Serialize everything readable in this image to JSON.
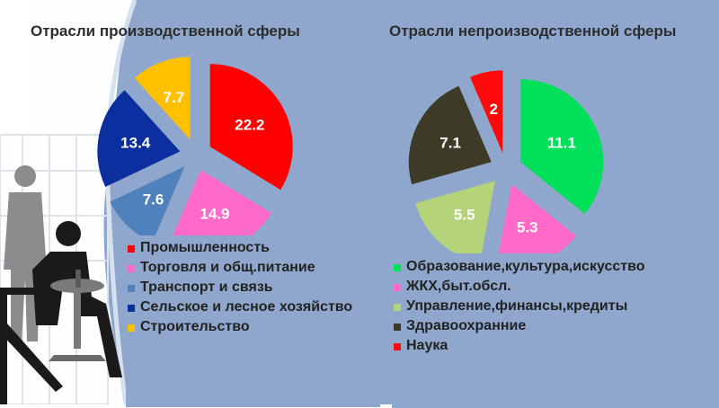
{
  "chart_data": [
    {
      "type": "pie",
      "title": "Отрасли производственной сферы",
      "categories": [
        "Промышленность",
        "Торговля и общ.питание",
        "Транспорт и связь",
        "Сельское и лесное хозяйство",
        "Строительство"
      ],
      "values": [
        22.2,
        14.9,
        7.6,
        13.4,
        7.7
      ],
      "value_labels": [
        "22.2",
        "14.9",
        "7.6",
        "13.4",
        "7.7"
      ],
      "colors": [
        "#ff0000",
        "#ff69c8",
        "#4f81bd",
        "#0b2f9e",
        "#ffc000"
      ],
      "legend_labels": [
        "Промышленность",
        "Торговля и общ.питание",
        " Транспорт и связь",
        "Сельское и лесное хозяйство",
        "Строительство"
      ],
      "legend": "bottom",
      "exploded": true
    },
    {
      "type": "pie",
      "title": "Отрасли непроизводственной сферы",
      "categories": [
        "Образование,культура,искусство",
        "ЖКХ,быт.обсл.",
        "Управление,финансы,кредиты",
        "Здравоохранние",
        "Наука"
      ],
      "values": [
        11.1,
        5.3,
        5.5,
        7.1,
        2
      ],
      "value_labels": [
        "11.1",
        "5.3",
        "5.5",
        "7.1",
        "2"
      ],
      "colors": [
        "#00e05a",
        "#ff69c8",
        "#b5d47a",
        "#3d3a28",
        "#ff0a0a"
      ],
      "legend_labels": [
        "Образование,культура,искусство",
        "ЖКХ,быт.обсл.",
        "Управление,финансы,кредиты",
        "Здравоохранние",
        "Наука"
      ],
      "legend": "bottom",
      "exploded": true
    }
  ]
}
